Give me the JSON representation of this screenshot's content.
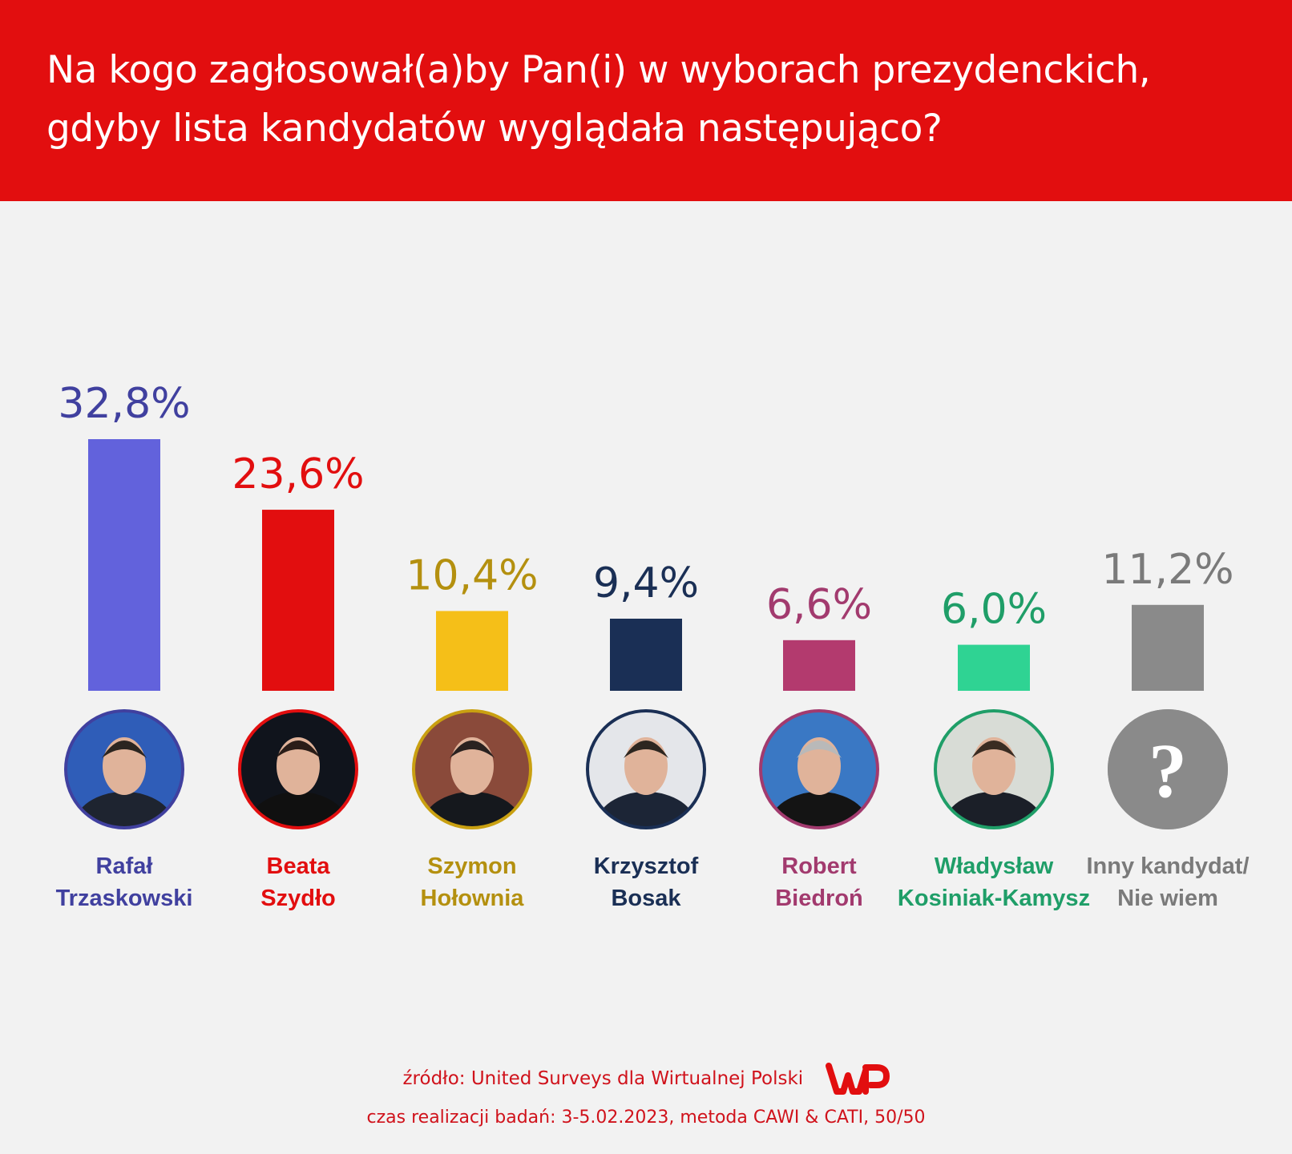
{
  "header": {
    "title_line1": "Na kogo zagłosował(a)by Pan(i) w wyborach prezydenckich,",
    "title_line2": "gdyby lista kandydatów wyglądała następująco?"
  },
  "chart_data": {
    "type": "bar",
    "title": "Na kogo zagłosował(a)by Pan(i) w wyborach prezydenckich, gdyby lista kandydatów wyglądała następująco?",
    "xlabel": "",
    "ylabel": "",
    "grid": false,
    "categories": [
      "Rafał Trzaskowski",
      "Beata Szydło",
      "Szymon Hołownia",
      "Krzysztof Bosak",
      "Robert Biedroń",
      "Władysław Kosiniak-Kamysz",
      "Inny kandydat/ Nie wiem"
    ],
    "values": [
      32.8,
      23.6,
      10.4,
      9.4,
      6.6,
      6.0,
      11.2
    ],
    "value_labels": [
      "32,8%",
      "23,6%",
      "10,4%",
      "9,4%",
      "6,6%",
      "6,0%",
      "11,2%"
    ],
    "name_lines": [
      [
        "Rafał",
        "Trzaskowski"
      ],
      [
        "Beata",
        "Szydło"
      ],
      [
        "Szymon",
        "Hołownia"
      ],
      [
        "Krzysztof",
        "Bosak"
      ],
      [
        "Robert",
        "Biedroń"
      ],
      [
        "Władysław",
        "Kosiniak-Kamysz"
      ],
      [
        "Inny kandydat/",
        "Nie wiem"
      ]
    ],
    "bar_colors": [
      "#6262dc",
      "#e20e0f",
      "#f5bf18",
      "#1a2f55",
      "#b33a6e",
      "#2fd393",
      "#8a8a8a"
    ],
    "label_colors": [
      "#40409f",
      "#e20e0f",
      "#b4900f",
      "#1a2f55",
      "#a23a6e",
      "#1f9e68",
      "#7a7a7a"
    ],
    "ring_colors": [
      "#40409f",
      "#e20e0f",
      "#c9a011",
      "#1a2f55",
      "#a23a6e",
      "#1f9e68",
      "#8a8a8a"
    ],
    "avatar_icons": [
      "person-photo",
      "person-photo",
      "person-photo",
      "person-photo",
      "person-photo",
      "person-photo",
      "question-mark-icon"
    ],
    "question_mark": "?",
    "ylim": [
      0,
      32.8
    ]
  },
  "footer": {
    "source": "źródło: United Surveys dla Wirtualnej Polski",
    "meta": "czas realizacji badań: 3-5.02.2023, metoda CAWI & CATI, 50/50",
    "logo": "WP",
    "accent_color": "#d0121b"
  }
}
